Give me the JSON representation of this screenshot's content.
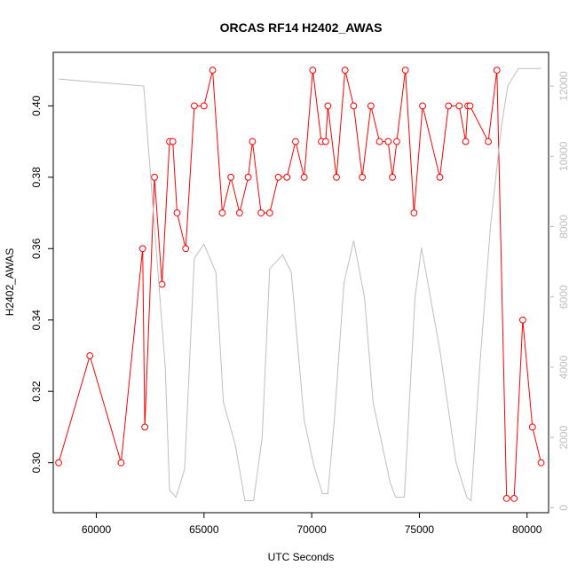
{
  "chart_data": {
    "type": "line",
    "title": "ORCAS RF14 H2402_AWAS",
    "xlabel": "UTC Seconds",
    "ylabel": "H2402_AWAS",
    "xlim": [
      58000,
      81000
    ],
    "ylim": [
      0.286,
      0.415
    ],
    "y2lim": [
      -140,
      12960
    ],
    "x_ticks": [
      60000,
      65000,
      70000,
      75000,
      80000
    ],
    "y_ticks": [
      0.3,
      0.32,
      0.34,
      0.36,
      0.38,
      0.4
    ],
    "y_tick_labels": [
      "0.30",
      "0.32",
      "0.34",
      "0.36",
      "0.38",
      "0.40"
    ],
    "y2_ticks": [
      0,
      2000,
      4000,
      6000,
      8000,
      10000,
      12000
    ],
    "grid": false,
    "series": [
      {
        "axis": "left",
        "color": "#ff0000",
        "style": "line+circle-markers",
        "x": [
          58250,
          59700,
          61150,
          62150,
          62250,
          62700,
          63050,
          63400,
          63550,
          63750,
          64150,
          64550,
          65000,
          65400,
          65850,
          66250,
          66650,
          67050,
          67250,
          67650,
          68050,
          68450,
          68850,
          69250,
          69650,
          70050,
          70450,
          70650,
          70750,
          71150,
          71550,
          71950,
          72350,
          72750,
          73150,
          73550,
          73750,
          73950,
          74350,
          74750,
          75150,
          75950,
          76350,
          76850,
          77150,
          77250,
          77350,
          78200,
          78600,
          79050,
          79400,
          79800,
          80250,
          80650
        ],
        "y": [
          0.3,
          0.33,
          0.3,
          0.36,
          0.31,
          0.38,
          0.35,
          0.39,
          0.39,
          0.37,
          0.36,
          0.4,
          0.4,
          0.41,
          0.37,
          0.38,
          0.37,
          0.38,
          0.39,
          0.37,
          0.37,
          0.38,
          0.38,
          0.39,
          0.38,
          0.41,
          0.39,
          0.39,
          0.4,
          0.38,
          0.41,
          0.4,
          0.38,
          0.4,
          0.39,
          0.39,
          0.38,
          0.39,
          0.41,
          0.37,
          0.4,
          0.38,
          0.4,
          0.4,
          0.39,
          0.4,
          0.4,
          0.39,
          0.41,
          0.29,
          0.29,
          0.34,
          0.31,
          0.3
        ]
      },
      {
        "axis": "right",
        "color": "#bebebe",
        "style": "line",
        "x": [
          58250,
          62200,
          62700,
          63200,
          63400,
          63700,
          64100,
          64550,
          65000,
          65550,
          65900,
          66450,
          66900,
          67050,
          67300,
          67700,
          68050,
          68650,
          69050,
          69650,
          70100,
          70500,
          70750,
          71050,
          71500,
          71950,
          72450,
          72850,
          73650,
          73900,
          74300,
          74800,
          75100,
          75950,
          76700,
          77200,
          77400,
          77800,
          78300,
          78800,
          79100,
          79600,
          80650
        ],
        "y": [
          12200,
          12000,
          8000,
          4000,
          500,
          300,
          1100,
          7100,
          7500,
          6700,
          3000,
          1800,
          200,
          200,
          200,
          2000,
          6800,
          7200,
          6700,
          2500,
          1200,
          400,
          400,
          2500,
          6400,
          7600,
          6000,
          3000,
          700,
          300,
          300,
          6000,
          7400,
          4500,
          1300,
          300,
          200,
          4000,
          8000,
          10800,
          12000,
          12500,
          12500
        ]
      }
    ]
  }
}
